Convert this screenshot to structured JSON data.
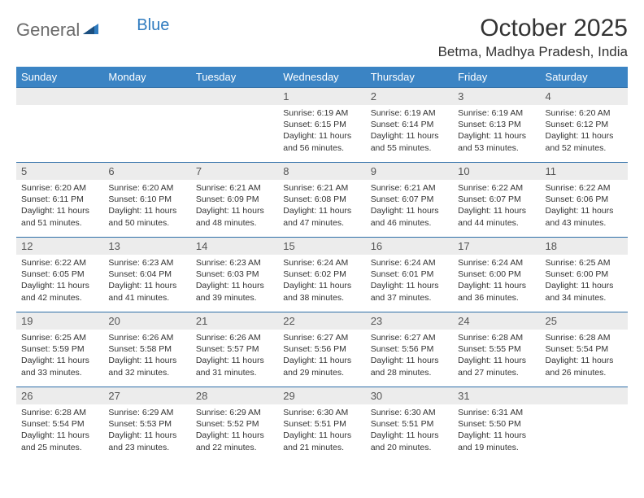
{
  "logo": {
    "text1": "General",
    "text2": "Blue"
  },
  "title": "October 2025",
  "location": "Betma, Madhya Pradesh, India",
  "colors": {
    "header_bg": "#3b84c4",
    "header_text": "#ffffff",
    "daynum_bg": "#ececec",
    "row_border": "#2f6fa8",
    "logo_gray": "#6b6b6b",
    "logo_blue": "#2f7bbf"
  },
  "day_labels": [
    "Sunday",
    "Monday",
    "Tuesday",
    "Wednesday",
    "Thursday",
    "Friday",
    "Saturday"
  ],
  "weeks": [
    [
      null,
      null,
      null,
      {
        "n": "1",
        "sr": "Sunrise: 6:19 AM",
        "ss": "Sunset: 6:15 PM",
        "d1": "Daylight: 11 hours",
        "d2": "and 56 minutes."
      },
      {
        "n": "2",
        "sr": "Sunrise: 6:19 AM",
        "ss": "Sunset: 6:14 PM",
        "d1": "Daylight: 11 hours",
        "d2": "and 55 minutes."
      },
      {
        "n": "3",
        "sr": "Sunrise: 6:19 AM",
        "ss": "Sunset: 6:13 PM",
        "d1": "Daylight: 11 hours",
        "d2": "and 53 minutes."
      },
      {
        "n": "4",
        "sr": "Sunrise: 6:20 AM",
        "ss": "Sunset: 6:12 PM",
        "d1": "Daylight: 11 hours",
        "d2": "and 52 minutes."
      }
    ],
    [
      {
        "n": "5",
        "sr": "Sunrise: 6:20 AM",
        "ss": "Sunset: 6:11 PM",
        "d1": "Daylight: 11 hours",
        "d2": "and 51 minutes."
      },
      {
        "n": "6",
        "sr": "Sunrise: 6:20 AM",
        "ss": "Sunset: 6:10 PM",
        "d1": "Daylight: 11 hours",
        "d2": "and 50 minutes."
      },
      {
        "n": "7",
        "sr": "Sunrise: 6:21 AM",
        "ss": "Sunset: 6:09 PM",
        "d1": "Daylight: 11 hours",
        "d2": "and 48 minutes."
      },
      {
        "n": "8",
        "sr": "Sunrise: 6:21 AM",
        "ss": "Sunset: 6:08 PM",
        "d1": "Daylight: 11 hours",
        "d2": "and 47 minutes."
      },
      {
        "n": "9",
        "sr": "Sunrise: 6:21 AM",
        "ss": "Sunset: 6:07 PM",
        "d1": "Daylight: 11 hours",
        "d2": "and 46 minutes."
      },
      {
        "n": "10",
        "sr": "Sunrise: 6:22 AM",
        "ss": "Sunset: 6:07 PM",
        "d1": "Daylight: 11 hours",
        "d2": "and 44 minutes."
      },
      {
        "n": "11",
        "sr": "Sunrise: 6:22 AM",
        "ss": "Sunset: 6:06 PM",
        "d1": "Daylight: 11 hours",
        "d2": "and 43 minutes."
      }
    ],
    [
      {
        "n": "12",
        "sr": "Sunrise: 6:22 AM",
        "ss": "Sunset: 6:05 PM",
        "d1": "Daylight: 11 hours",
        "d2": "and 42 minutes."
      },
      {
        "n": "13",
        "sr": "Sunrise: 6:23 AM",
        "ss": "Sunset: 6:04 PM",
        "d1": "Daylight: 11 hours",
        "d2": "and 41 minutes."
      },
      {
        "n": "14",
        "sr": "Sunrise: 6:23 AM",
        "ss": "Sunset: 6:03 PM",
        "d1": "Daylight: 11 hours",
        "d2": "and 39 minutes."
      },
      {
        "n": "15",
        "sr": "Sunrise: 6:24 AM",
        "ss": "Sunset: 6:02 PM",
        "d1": "Daylight: 11 hours",
        "d2": "and 38 minutes."
      },
      {
        "n": "16",
        "sr": "Sunrise: 6:24 AM",
        "ss": "Sunset: 6:01 PM",
        "d1": "Daylight: 11 hours",
        "d2": "and 37 minutes."
      },
      {
        "n": "17",
        "sr": "Sunrise: 6:24 AM",
        "ss": "Sunset: 6:00 PM",
        "d1": "Daylight: 11 hours",
        "d2": "and 36 minutes."
      },
      {
        "n": "18",
        "sr": "Sunrise: 6:25 AM",
        "ss": "Sunset: 6:00 PM",
        "d1": "Daylight: 11 hours",
        "d2": "and 34 minutes."
      }
    ],
    [
      {
        "n": "19",
        "sr": "Sunrise: 6:25 AM",
        "ss": "Sunset: 5:59 PM",
        "d1": "Daylight: 11 hours",
        "d2": "and 33 minutes."
      },
      {
        "n": "20",
        "sr": "Sunrise: 6:26 AM",
        "ss": "Sunset: 5:58 PM",
        "d1": "Daylight: 11 hours",
        "d2": "and 32 minutes."
      },
      {
        "n": "21",
        "sr": "Sunrise: 6:26 AM",
        "ss": "Sunset: 5:57 PM",
        "d1": "Daylight: 11 hours",
        "d2": "and 31 minutes."
      },
      {
        "n": "22",
        "sr": "Sunrise: 6:27 AM",
        "ss": "Sunset: 5:56 PM",
        "d1": "Daylight: 11 hours",
        "d2": "and 29 minutes."
      },
      {
        "n": "23",
        "sr": "Sunrise: 6:27 AM",
        "ss": "Sunset: 5:56 PM",
        "d1": "Daylight: 11 hours",
        "d2": "and 28 minutes."
      },
      {
        "n": "24",
        "sr": "Sunrise: 6:28 AM",
        "ss": "Sunset: 5:55 PM",
        "d1": "Daylight: 11 hours",
        "d2": "and 27 minutes."
      },
      {
        "n": "25",
        "sr": "Sunrise: 6:28 AM",
        "ss": "Sunset: 5:54 PM",
        "d1": "Daylight: 11 hours",
        "d2": "and 26 minutes."
      }
    ],
    [
      {
        "n": "26",
        "sr": "Sunrise: 6:28 AM",
        "ss": "Sunset: 5:54 PM",
        "d1": "Daylight: 11 hours",
        "d2": "and 25 minutes."
      },
      {
        "n": "27",
        "sr": "Sunrise: 6:29 AM",
        "ss": "Sunset: 5:53 PM",
        "d1": "Daylight: 11 hours",
        "d2": "and 23 minutes."
      },
      {
        "n": "28",
        "sr": "Sunrise: 6:29 AM",
        "ss": "Sunset: 5:52 PM",
        "d1": "Daylight: 11 hours",
        "d2": "and 22 minutes."
      },
      {
        "n": "29",
        "sr": "Sunrise: 6:30 AM",
        "ss": "Sunset: 5:51 PM",
        "d1": "Daylight: 11 hours",
        "d2": "and 21 minutes."
      },
      {
        "n": "30",
        "sr": "Sunrise: 6:30 AM",
        "ss": "Sunset: 5:51 PM",
        "d1": "Daylight: 11 hours",
        "d2": "and 20 minutes."
      },
      {
        "n": "31",
        "sr": "Sunrise: 6:31 AM",
        "ss": "Sunset: 5:50 PM",
        "d1": "Daylight: 11 hours",
        "d2": "and 19 minutes."
      },
      null
    ]
  ]
}
